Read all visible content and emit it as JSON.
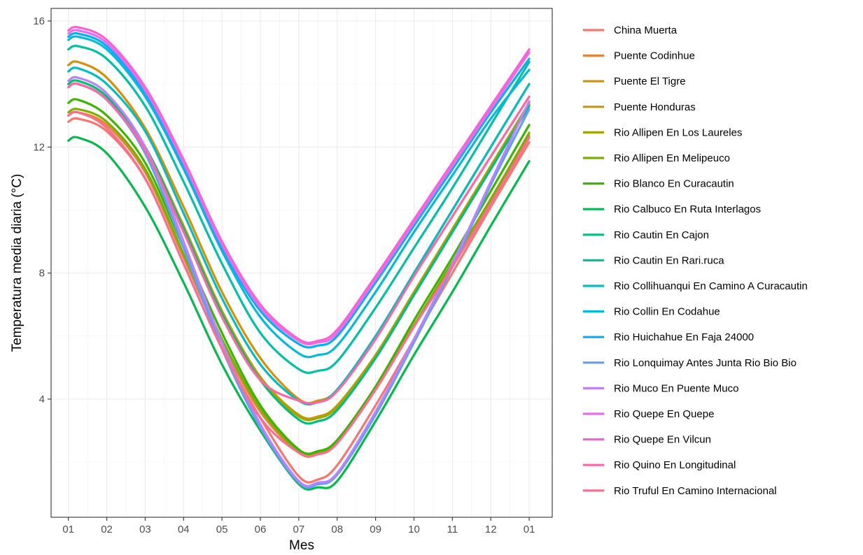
{
  "chart_data": {
    "type": "line",
    "title": "",
    "xlabel": "Mes",
    "ylabel": "Temperatura media diaria (°C)",
    "x_tick_labels": [
      "01",
      "02",
      "03",
      "04",
      "05",
      "06",
      "07",
      "08",
      "09",
      "10",
      "11",
      "12",
      "01"
    ],
    "x_ticks": [
      1,
      2,
      3,
      4,
      5,
      6,
      7,
      8,
      9,
      10,
      11,
      12,
      13
    ],
    "xlim": [
      0.55,
      13.6
    ],
    "y_ticks": [
      4,
      8,
      12,
      16
    ],
    "ylim": [
      0.25,
      16.4
    ],
    "grid": true,
    "legend_position": "right",
    "x": [
      1,
      1.25,
      2,
      3,
      4,
      5,
      6,
      7,
      7.5,
      8,
      9,
      10,
      11,
      12,
      13
    ],
    "series": [
      {
        "name": "China Muerta",
        "color": "#F8766D",
        "values": [
          12.8,
          12.9,
          12.5,
          11.0,
          8.3,
          5.6,
          3.4,
          1.55,
          1.45,
          1.9,
          3.8,
          5.9,
          8.0,
          10.1,
          12.15
        ]
      },
      {
        "name": "Puente Codinhue",
        "color": "#EA8331",
        "values": [
          13.0,
          13.1,
          12.7,
          11.2,
          8.5,
          5.8,
          3.6,
          2.3,
          2.25,
          2.6,
          4.3,
          6.3,
          8.3,
          10.3,
          12.35
        ]
      },
      {
        "name": "Puente El Tigre",
        "color": "#D89000",
        "values": [
          14.6,
          14.7,
          14.2,
          12.6,
          10.1,
          7.4,
          5.3,
          4.0,
          3.95,
          4.3,
          6.0,
          8.0,
          10.0,
          12.0,
          14.0
        ]
      },
      {
        "name": "Puente Honduras",
        "color": "#C09B00",
        "values": [
          14.0,
          14.1,
          13.6,
          12.0,
          9.5,
          6.8,
          4.7,
          3.5,
          3.45,
          3.8,
          5.4,
          7.4,
          9.4,
          11.4,
          13.4
        ]
      },
      {
        "name": "Rio Allipen En Los Laureles",
        "color": "#A3A500",
        "values": [
          13.9,
          14.0,
          13.5,
          11.9,
          9.4,
          6.7,
          4.6,
          3.45,
          3.4,
          3.75,
          5.35,
          7.35,
          9.35,
          11.35,
          13.35
        ]
      },
      {
        "name": "Rio Allipen En Melipeuco",
        "color": "#7CAE00",
        "values": [
          13.1,
          13.2,
          12.8,
          11.3,
          8.6,
          5.9,
          3.7,
          2.35,
          2.3,
          2.65,
          4.35,
          6.35,
          8.35,
          10.35,
          12.45
        ]
      },
      {
        "name": "Rio Blanco En Curacautin",
        "color": "#39B600",
        "values": [
          13.4,
          13.5,
          13.0,
          11.5,
          8.8,
          6.1,
          3.8,
          2.4,
          2.35,
          2.7,
          4.4,
          6.5,
          8.5,
          10.6,
          12.7
        ]
      },
      {
        "name": "Rio Calbuco En Ruta Interlagos",
        "color": "#00BB4E",
        "values": [
          12.2,
          12.3,
          11.8,
          10.1,
          7.7,
          5.1,
          3.0,
          1.3,
          1.2,
          1.4,
          3.3,
          5.4,
          7.4,
          9.5,
          11.55
        ]
      },
      {
        "name": "Rio Cautin En Cajon",
        "color": "#00BF7D",
        "values": [
          14.0,
          14.1,
          13.6,
          12.0,
          9.4,
          6.7,
          4.6,
          3.35,
          3.3,
          3.65,
          5.3,
          7.3,
          9.3,
          11.3,
          13.3
        ]
      },
      {
        "name": "Rio Cautin En Rari.ruca",
        "color": "#00C1A3",
        "values": [
          15.1,
          15.2,
          14.8,
          13.3,
          10.9,
          8.3,
          6.1,
          4.95,
          4.9,
          5.2,
          6.9,
          8.8,
          10.7,
          12.7,
          14.7
        ]
      },
      {
        "name": "Rio Collihuanqui En Camino A Curacautin",
        "color": "#00BFC4",
        "values": [
          14.4,
          14.5,
          14.0,
          12.5,
          9.9,
          7.2,
          5.1,
          3.95,
          3.9,
          4.3,
          6.0,
          8.0,
          10.0,
          12.0,
          14.0
        ]
      },
      {
        "name": "Rio Collin En Codahue",
        "color": "#00BAE0",
        "values": [
          15.4,
          15.5,
          15.1,
          13.6,
          11.3,
          8.7,
          6.6,
          5.45,
          5.4,
          5.7,
          7.4,
          9.3,
          11.1,
          12.9,
          14.45
        ]
      },
      {
        "name": "Rio Huichahue En Faja 24000",
        "color": "#00B0F6",
        "values": [
          15.5,
          15.6,
          15.2,
          13.7,
          11.4,
          8.8,
          6.8,
          5.75,
          5.7,
          6.0,
          7.7,
          9.5,
          11.3,
          13.1,
          14.8
        ]
      },
      {
        "name": "Rio Lonquimay Antes Junta Rio Bio Bio",
        "color": "#619CFF",
        "values": [
          13.9,
          14.0,
          13.5,
          11.8,
          8.8,
          5.6,
          3.1,
          1.35,
          1.3,
          1.6,
          3.5,
          5.8,
          8.2,
          10.8,
          13.2
        ]
      },
      {
        "name": "Rio Muco En Puente Muco",
        "color": "#B983FF",
        "values": [
          14.1,
          14.2,
          13.7,
          12.0,
          9.0,
          5.8,
          3.2,
          1.4,
          1.35,
          1.65,
          3.6,
          5.9,
          8.3,
          10.9,
          13.45
        ]
      },
      {
        "name": "Rio Quepe En Quepe",
        "color": "#E76BF3",
        "values": [
          15.6,
          15.7,
          15.3,
          13.8,
          11.5,
          8.9,
          6.9,
          5.85,
          5.8,
          6.1,
          7.8,
          9.6,
          11.4,
          13.2,
          15.0
        ]
      },
      {
        "name": "Rio Quepe En Vilcun",
        "color": "#FD61D1",
        "values": [
          15.7,
          15.8,
          15.4,
          13.9,
          11.6,
          9.0,
          7.0,
          5.9,
          5.85,
          6.2,
          7.9,
          9.7,
          11.5,
          13.3,
          15.1
        ]
      },
      {
        "name": "Rio Quino En Longitudinal",
        "color": "#FF67A4",
        "values": [
          13.9,
          14.0,
          13.5,
          11.9,
          9.3,
          6.6,
          4.6,
          3.95,
          3.9,
          4.25,
          5.9,
          7.9,
          9.8,
          11.7,
          13.6
        ]
      },
      {
        "name": "Rio Truful En Camino Internacional",
        "color": "#FF6C91",
        "values": [
          13.0,
          13.1,
          12.6,
          11.0,
          8.3,
          5.6,
          3.4,
          2.3,
          2.25,
          2.6,
          4.3,
          6.3,
          8.2,
          10.2,
          12.3
        ]
      }
    ]
  }
}
